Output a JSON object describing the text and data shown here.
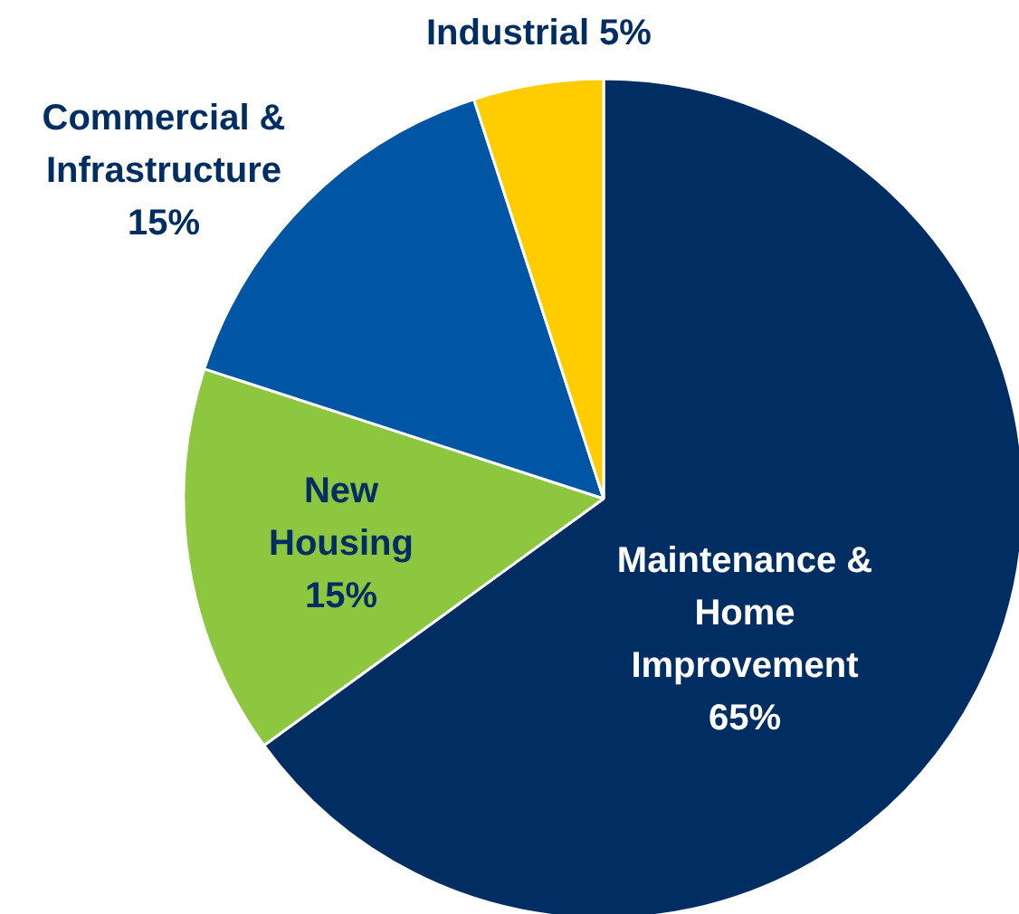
{
  "chart_data": {
    "type": "pie",
    "categories": [
      "Maintenance &\nHome\nImprovement",
      "New\nHousing",
      "Commercial &\nInfrastructure",
      "Industrial"
    ],
    "values": [
      65,
      15,
      15,
      5
    ],
    "value_labels": [
      "65%",
      "15%",
      "15%",
      "5%"
    ],
    "colors": [
      "#002d62",
      "#8dc63f",
      "#0055a5",
      "#ffcc00"
    ]
  }
}
